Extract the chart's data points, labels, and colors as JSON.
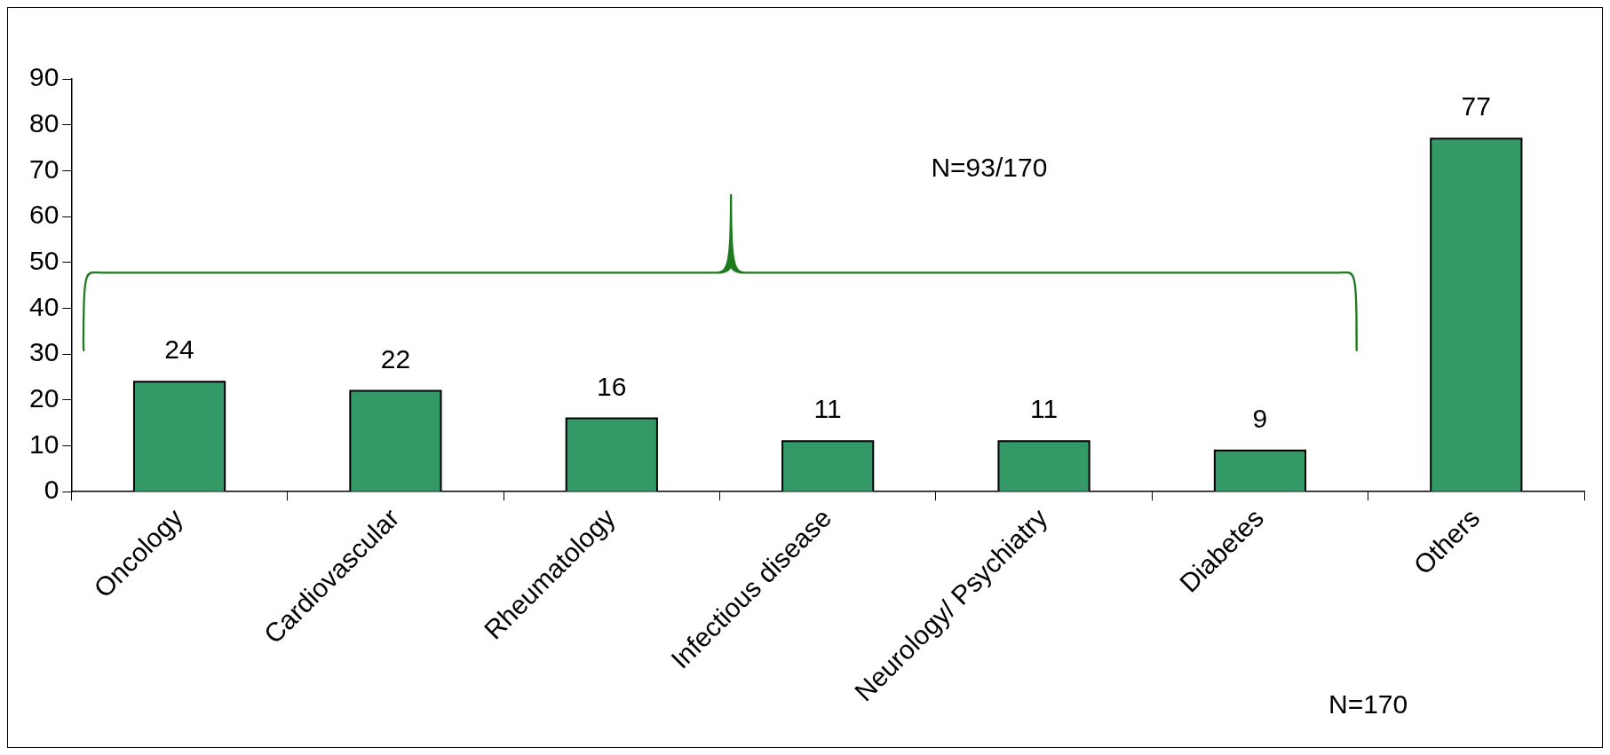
{
  "chart_data": {
    "type": "bar",
    "categories": [
      "Oncology",
      "Cardiovascular",
      "Rheumatology",
      "Infectious disease",
      "Neurology/ Psychiatry",
      "Diabetes",
      "Others"
    ],
    "values": [
      24,
      22,
      16,
      11,
      11,
      9,
      77
    ],
    "color": "#339966",
    "ylim": [
      0,
      90
    ],
    "yticks": [
      0,
      10,
      20,
      30,
      40,
      50,
      60,
      70,
      80,
      90
    ],
    "grid": false,
    "legend": false,
    "data_labels": true,
    "annotations": [
      "N=93/170",
      "N=170"
    ]
  }
}
